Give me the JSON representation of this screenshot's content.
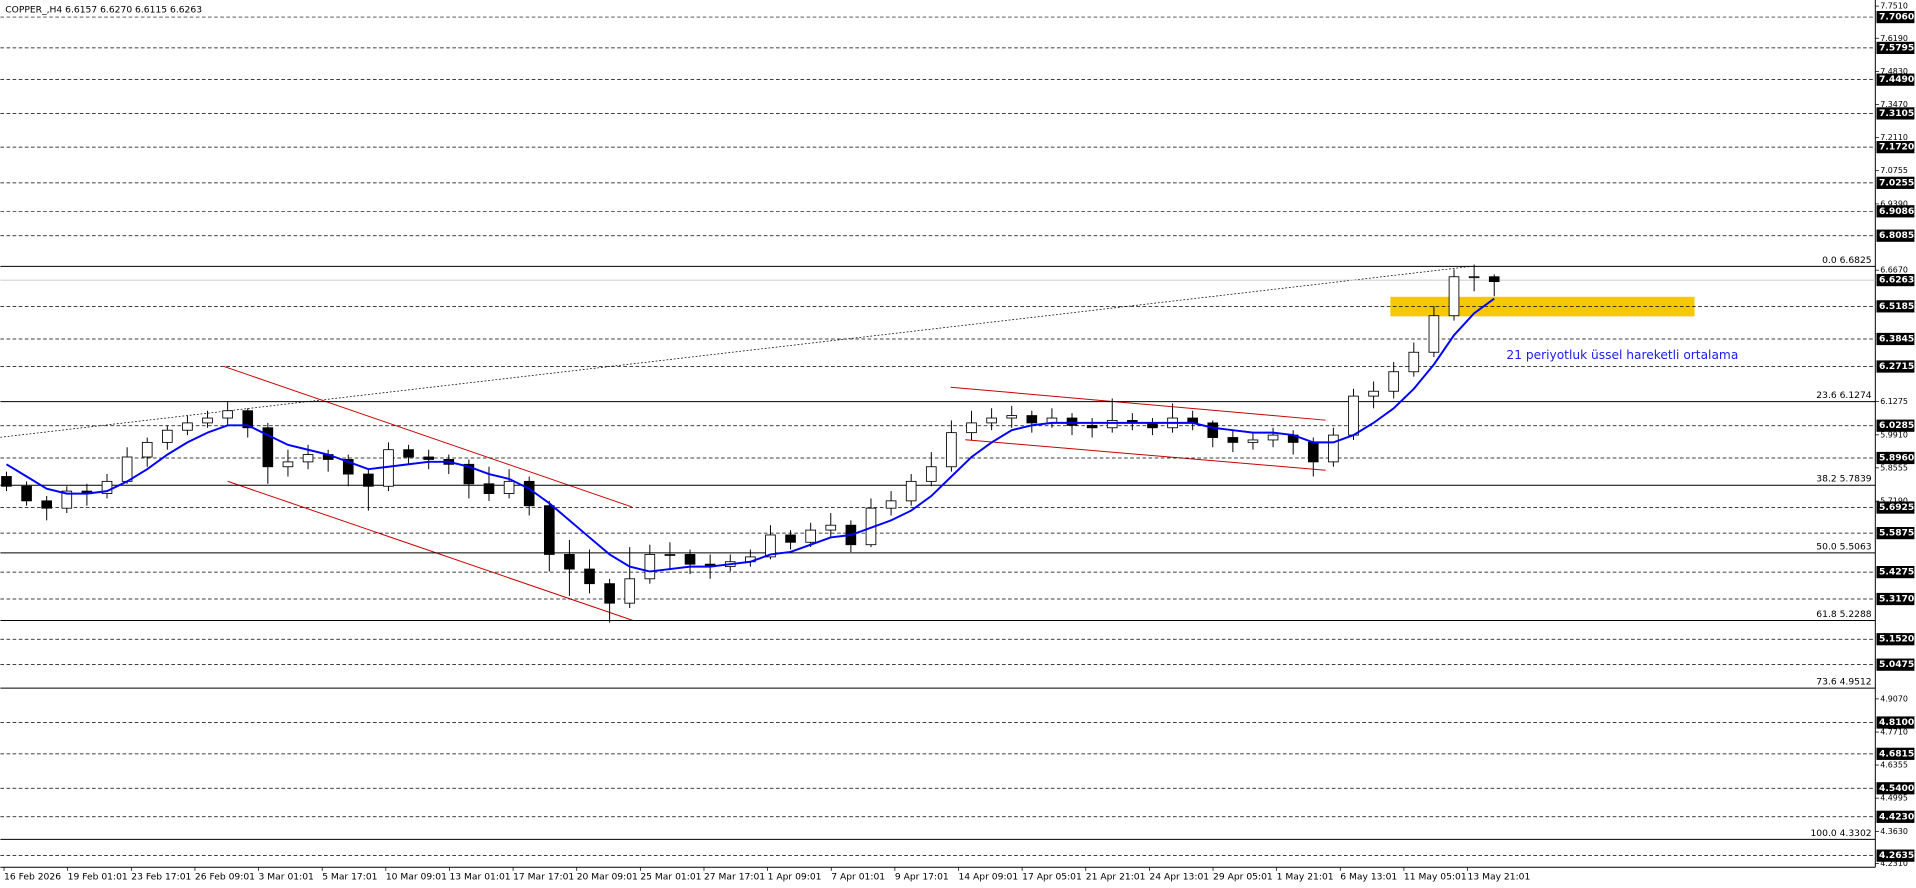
{
  "chart_data": {
    "type": "candlestick",
    "title": "COPPER_,H4  6.6157 6.6270 6.6115 6.6263",
    "annotation": "21 periyotluk üssel hareketli ortalama",
    "time_labels": [
      "16 Feb 2026",
      "19 Feb 01:01",
      "23 Feb 17:01",
      "26 Feb 09:01",
      "3 Mar 01:01",
      "5 Mar 17:01",
      "10 Mar 09:01",
      "13 Mar 01:01",
      "17 Mar 17:01",
      "20 Mar 09:01",
      "25 Mar 01:01",
      "27 Mar 17:01",
      "1 Apr 09:01",
      "7 Apr 01:01",
      "9 Apr 17:01",
      "14 Apr 09:01",
      "17 Apr 05:01",
      "21 Apr 21:01",
      "24 Apr 13:01",
      "29 Apr 05:01",
      "1 May 21:01",
      "6 May 13:01",
      "11 May 05:01",
      "13 May 21:01"
    ],
    "ohlc": [
      [
        5.82,
        5.84,
        5.76,
        5.78
      ],
      [
        5.78,
        5.8,
        5.7,
        5.72
      ],
      [
        5.72,
        5.74,
        5.64,
        5.69
      ],
      [
        5.69,
        5.78,
        5.67,
        5.76
      ],
      [
        5.76,
        5.79,
        5.7,
        5.75
      ],
      [
        5.75,
        5.83,
        5.73,
        5.8
      ],
      [
        5.8,
        5.94,
        5.79,
        5.9
      ],
      [
        5.9,
        5.98,
        5.86,
        5.96
      ],
      [
        5.96,
        6.03,
        5.93,
        6.01
      ],
      [
        6.01,
        6.07,
        5.99,
        6.04
      ],
      [
        6.04,
        6.09,
        6.02,
        6.06
      ],
      [
        6.06,
        6.13,
        6.03,
        6.09
      ],
      [
        6.09,
        6.1,
        5.98,
        6.02
      ],
      [
        6.02,
        6.04,
        5.79,
        5.86
      ],
      [
        5.86,
        5.93,
        5.82,
        5.88
      ],
      [
        5.88,
        5.95,
        5.85,
        5.91
      ],
      [
        5.91,
        5.93,
        5.84,
        5.89
      ],
      [
        5.89,
        5.91,
        5.78,
        5.83
      ],
      [
        5.83,
        5.85,
        5.68,
        5.78
      ],
      [
        5.78,
        5.96,
        5.76,
        5.93
      ],
      [
        5.93,
        5.95,
        5.87,
        5.9
      ],
      [
        5.9,
        5.93,
        5.85,
        5.89
      ],
      [
        5.89,
        5.91,
        5.83,
        5.87
      ],
      [
        5.87,
        5.89,
        5.73,
        5.79
      ],
      [
        5.79,
        5.86,
        5.72,
        5.75
      ],
      [
        5.75,
        5.85,
        5.73,
        5.8
      ],
      [
        5.8,
        5.82,
        5.66,
        5.7
      ],
      [
        5.7,
        5.72,
        5.43,
        5.5
      ],
      [
        5.5,
        5.56,
        5.33,
        5.44
      ],
      [
        5.44,
        5.52,
        5.34,
        5.38
      ],
      [
        5.38,
        5.4,
        5.22,
        5.3
      ],
      [
        5.3,
        5.53,
        5.28,
        5.4
      ],
      [
        5.4,
        5.54,
        5.38,
        5.5
      ],
      [
        5.5,
        5.55,
        5.44,
        5.5
      ],
      [
        5.5,
        5.52,
        5.42,
        5.46
      ],
      [
        5.46,
        5.5,
        5.4,
        5.45
      ],
      [
        5.45,
        5.5,
        5.43,
        5.47
      ],
      [
        5.47,
        5.52,
        5.45,
        5.49
      ],
      [
        5.49,
        5.62,
        5.48,
        5.58
      ],
      [
        5.58,
        5.6,
        5.52,
        5.55
      ],
      [
        5.55,
        5.63,
        5.53,
        5.6
      ],
      [
        5.6,
        5.67,
        5.57,
        5.62
      ],
      [
        5.62,
        5.64,
        5.51,
        5.54
      ],
      [
        5.54,
        5.73,
        5.53,
        5.69
      ],
      [
        5.69,
        5.76,
        5.66,
        5.72
      ],
      [
        5.72,
        5.83,
        5.7,
        5.8
      ],
      [
        5.8,
        5.92,
        5.78,
        5.86
      ],
      [
        5.86,
        6.05,
        5.84,
        6.0
      ],
      [
        6.0,
        6.09,
        5.97,
        6.04
      ],
      [
        6.04,
        6.1,
        6.01,
        6.06
      ],
      [
        6.06,
        6.11,
        6.02,
        6.07
      ],
      [
        6.07,
        6.09,
        6.0,
        6.04
      ],
      [
        6.04,
        6.1,
        6.02,
        6.06
      ],
      [
        6.06,
        6.08,
        5.99,
        6.03
      ],
      [
        6.03,
        6.06,
        5.98,
        6.02
      ],
      [
        6.02,
        6.14,
        6.0,
        6.05
      ],
      [
        6.05,
        6.08,
        6.01,
        6.04
      ],
      [
        6.04,
        6.06,
        5.99,
        6.02
      ],
      [
        6.02,
        6.12,
        6.0,
        6.06
      ],
      [
        6.06,
        6.09,
        6.01,
        6.04
      ],
      [
        6.04,
        6.05,
        5.94,
        5.98
      ],
      [
        5.98,
        6.01,
        5.92,
        5.96
      ],
      [
        5.96,
        6.0,
        5.93,
        5.97
      ],
      [
        5.97,
        6.02,
        5.94,
        5.99
      ],
      [
        5.99,
        6.01,
        5.91,
        5.96
      ],
      [
        5.96,
        5.98,
        5.82,
        5.88
      ],
      [
        5.88,
        6.02,
        5.86,
        5.99
      ],
      [
        5.99,
        6.18,
        5.97,
        6.15
      ],
      [
        6.15,
        6.21,
        6.1,
        6.17
      ],
      [
        6.17,
        6.29,
        6.14,
        6.25
      ],
      [
        6.25,
        6.37,
        6.23,
        6.33
      ],
      [
        6.33,
        6.52,
        6.31,
        6.48
      ],
      [
        6.48,
        6.67,
        6.46,
        6.64
      ],
      [
        6.64,
        6.69,
        6.58,
        6.64
      ],
      [
        6.64,
        6.65,
        6.56,
        6.62
      ]
    ],
    "ema": {
      "color": "#0000ff",
      "values": [
        5.87,
        5.82,
        5.77,
        5.75,
        5.75,
        5.76,
        5.8,
        5.85,
        5.91,
        5.96,
        6.0,
        6.03,
        6.03,
        5.99,
        5.95,
        5.93,
        5.91,
        5.88,
        5.85,
        5.86,
        5.87,
        5.88,
        5.88,
        5.86,
        5.83,
        5.81,
        5.77,
        5.71,
        5.64,
        5.57,
        5.5,
        5.45,
        5.43,
        5.44,
        5.45,
        5.45,
        5.46,
        5.47,
        5.5,
        5.51,
        5.54,
        5.57,
        5.58,
        5.61,
        5.64,
        5.68,
        5.74,
        5.82,
        5.9,
        5.96,
        6.01,
        6.03,
        6.04,
        6.04,
        6.04,
        6.04,
        6.04,
        6.04,
        6.04,
        6.04,
        6.02,
        6.01,
        6.0,
        6.0,
        5.99,
        5.96,
        5.96,
        5.99,
        6.04,
        6.1,
        6.18,
        6.28,
        6.4,
        6.49,
        6.55
      ]
    },
    "ylim": [
      4.231,
      7.751
    ],
    "yticks": [
      {
        "value": 7.751,
        "label": "7.7510"
      },
      {
        "value": 7.619,
        "label": "7.6190"
      },
      {
        "value": 7.483,
        "label": "7.4830"
      },
      {
        "value": 7.347,
        "label": "7.3470"
      },
      {
        "value": 7.211,
        "label": "7.2110"
      },
      {
        "value": 7.0755,
        "label": "7.0755"
      },
      {
        "value": 6.939,
        "label": "6.9390"
      },
      {
        "value": 6.667,
        "label": "6.6670"
      },
      {
        "value": 6.1275,
        "label": "6.1275"
      },
      {
        "value": 5.991,
        "label": "5.9910"
      },
      {
        "value": 5.8555,
        "label": "5.8555"
      },
      {
        "value": 5.719,
        "label": "5.7190"
      },
      {
        "value": 4.907,
        "label": "4.9070"
      },
      {
        "value": 4.771,
        "label": "4.7710"
      },
      {
        "value": 4.6355,
        "label": "4.6355"
      },
      {
        "value": 4.4995,
        "label": "4.4995"
      },
      {
        "value": 4.363,
        "label": "4.3630"
      },
      {
        "value": 4.231,
        "label": "4.2310"
      }
    ],
    "levels": [
      {
        "value": 7.706,
        "label": "7.7060"
      },
      {
        "value": 7.5795,
        "label": "7.5795"
      },
      {
        "value": 7.449,
        "label": "7.4490"
      },
      {
        "value": 7.3105,
        "label": "7.3105"
      },
      {
        "value": 7.172,
        "label": "7.1720"
      },
      {
        "value": 7.0255,
        "label": "7.0255"
      },
      {
        "value": 6.9086,
        "label": "6.9086"
      },
      {
        "value": 6.8085,
        "label": "6.8085"
      },
      {
        "value": 6.5185,
        "label": "6.5185"
      },
      {
        "value": 6.3845,
        "label": "6.3845"
      },
      {
        "value": 6.2715,
        "label": "6.2715"
      },
      {
        "value": 6.0285,
        "label": "6.0285"
      },
      {
        "value": 5.896,
        "label": "5.8960"
      },
      {
        "value": 5.6925,
        "label": "5.6925"
      },
      {
        "value": 5.5875,
        "label": "5.5875"
      },
      {
        "value": 5.4275,
        "label": "5.4275"
      },
      {
        "value": 5.317,
        "label": "5.3170"
      },
      {
        "value": 5.152,
        "label": "5.1520"
      },
      {
        "value": 5.0475,
        "label": "5.0475"
      },
      {
        "value": 4.81,
        "label": "4.8100"
      },
      {
        "value": 4.6815,
        "label": "4.6815"
      },
      {
        "value": 4.54,
        "label": "4.5400"
      },
      {
        "value": 4.423,
        "label": "4.4230"
      },
      {
        "value": 4.2635,
        "label": "4.2635"
      }
    ],
    "current": {
      "value": 6.6263,
      "label": "6.6263"
    },
    "fib": [
      {
        "value": 6.6825,
        "label": "0.0 6.6825"
      },
      {
        "value": 6.1274,
        "label": "23.6 6.1274"
      },
      {
        "value": 5.7839,
        "label": "38.2 5.7839"
      },
      {
        "value": 5.5063,
        "label": "50.0 5.5063"
      },
      {
        "value": 5.2288,
        "label": "61.8 5.2288"
      },
      {
        "value": 4.9512,
        "label": "73.6 4.9512"
      },
      {
        "value": 4.3302,
        "label": "100.0 4.3302"
      }
    ]
  }
}
